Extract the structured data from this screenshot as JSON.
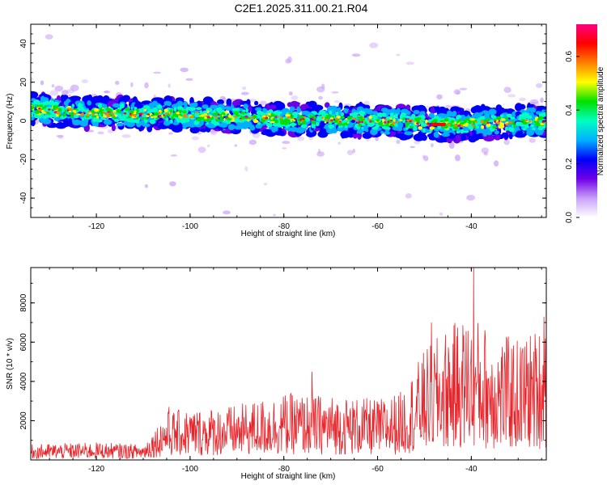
{
  "title": "C2E1.2025.311.00.21.R04",
  "chart_data": [
    {
      "type": "heatmap",
      "name": "spectrogram",
      "xlabel": "Height of straight line (km)",
      "ylabel": "Frequency (Hz)",
      "xlim": [
        -134,
        -24
      ],
      "ylim": [
        -50,
        50
      ],
      "xticks": [
        -120,
        -100,
        -80,
        -60,
        -40
      ],
      "yticks": [
        -40,
        -20,
        0,
        20,
        40
      ],
      "ytick_labels": [
        "-40",
        "-20",
        "0",
        "20",
        "40"
      ],
      "band_center_hz": [
        [
          -134,
          6
        ],
        [
          -120,
          4
        ],
        [
          -100,
          3
        ],
        [
          -80,
          1
        ],
        [
          -60,
          0
        ],
        [
          -45,
          -2
        ],
        [
          -35,
          -1
        ],
        [
          -24,
          0
        ]
      ],
      "band_halfwidth_hz": 8,
      "colorbar": {
        "label": "Normalized spectral amplitude",
        "range": [
          0.0,
          0.72
        ],
        "ticks": [
          0.0,
          0.2,
          0.4,
          0.6
        ],
        "tick_labels": [
          "0.0",
          "0.2",
          "0.4",
          "0.6"
        ],
        "colors": [
          "#ffffff",
          "#c8a0f8",
          "#7000e8",
          "#0000f8",
          "#00b0ff",
          "#00ffc0",
          "#00e000",
          "#ffff00",
          "#ff8000",
          "#ff0000",
          "#ff0080"
        ]
      }
    },
    {
      "type": "line",
      "name": "snr",
      "xlabel": "Height of straight line (km)",
      "ylabel": "SNR (10 * v/v)",
      "xlim": [
        -134,
        -24
      ],
      "ylim": [
        0,
        9800
      ],
      "xticks": [
        -120,
        -100,
        -80,
        -60,
        -40
      ],
      "yticks": [
        2000,
        4000,
        6000,
        8000
      ],
      "color": "#e8242a",
      "envelope": {
        "x": [
          -134,
          -120,
          -110,
          -105,
          -100,
          -90,
          -80,
          -70,
          -60,
          -55,
          -50,
          -45,
          -40,
          -35,
          -30,
          -24
        ],
        "y": [
          800,
          900,
          800,
          2500,
          2600,
          2800,
          3400,
          3300,
          3100,
          3500,
          5600,
          6800,
          7500,
          6500,
          6200,
          7000
        ]
      },
      "peaks": [
        [
          -104.5,
          2700
        ],
        [
          -74,
          4500
        ],
        [
          -48.5,
          7000
        ],
        [
          -39.5,
          9800
        ],
        [
          -24.5,
          7300
        ]
      ]
    }
  ]
}
